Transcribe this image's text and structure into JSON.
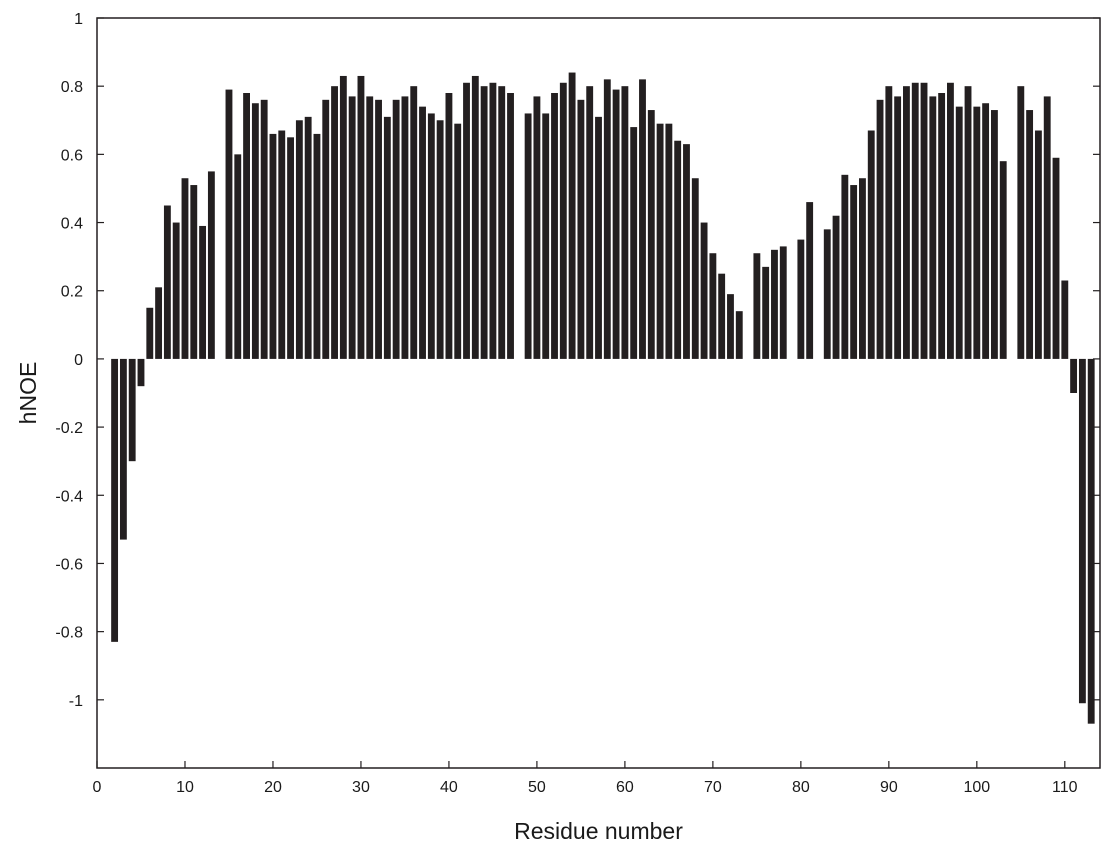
{
  "chart_data": {
    "type": "bar",
    "title": "",
    "xlabel": "Residue number",
    "ylabel": "hNOE",
    "xlim": [
      0,
      114
    ],
    "ylim": [
      -1.2,
      1
    ],
    "xticks": [
      0,
      10,
      20,
      30,
      40,
      50,
      60,
      70,
      80,
      90,
      100,
      110
    ],
    "yticks": [
      -1,
      -0.8,
      -0.6,
      -0.4,
      -0.2,
      0,
      0.2,
      0.4,
      0.6,
      0.8,
      1
    ],
    "ytick_labels": [
      "-1",
      "-0.8",
      "-0.6",
      "-0.4",
      "-0.2",
      "0",
      "0.2",
      "0.4",
      "0.6",
      "0.8",
      "1"
    ],
    "grid": false,
    "bar_color": "#231f20",
    "x": [
      2,
      3,
      4,
      5,
      6,
      7,
      8,
      9,
      10,
      11,
      12,
      13,
      15,
      16,
      17,
      18,
      19,
      20,
      21,
      22,
      23,
      24,
      25,
      26,
      27,
      28,
      29,
      30,
      31,
      32,
      33,
      34,
      35,
      36,
      37,
      38,
      39,
      40,
      41,
      42,
      43,
      44,
      45,
      46,
      47,
      49,
      50,
      51,
      52,
      53,
      54,
      55,
      56,
      57,
      58,
      59,
      60,
      61,
      62,
      63,
      64,
      65,
      66,
      67,
      68,
      69,
      70,
      71,
      72,
      73,
      75,
      76,
      77,
      78,
      80,
      81,
      83,
      84,
      85,
      86,
      87,
      88,
      89,
      90,
      91,
      92,
      93,
      94,
      95,
      96,
      97,
      98,
      99,
      100,
      101,
      102,
      103,
      105,
      106,
      107,
      108,
      109,
      110,
      111,
      112,
      113
    ],
    "values": [
      -0.83,
      -0.53,
      -0.3,
      -0.08,
      0.15,
      0.21,
      0.45,
      0.4,
      0.53,
      0.51,
      0.39,
      0.55,
      0.79,
      0.6,
      0.78,
      0.75,
      0.76,
      0.66,
      0.67,
      0.65,
      0.7,
      0.71,
      0.66,
      0.76,
      0.8,
      0.83,
      0.77,
      0.83,
      0.77,
      0.76,
      0.71,
      0.76,
      0.77,
      0.8,
      0.74,
      0.72,
      0.7,
      0.78,
      0.69,
      0.81,
      0.83,
      0.8,
      0.81,
      0.8,
      0.78,
      0.72,
      0.77,
      0.72,
      0.78,
      0.81,
      0.84,
      0.76,
      0.8,
      0.71,
      0.82,
      0.79,
      0.8,
      0.68,
      0.82,
      0.73,
      0.69,
      0.69,
      0.64,
      0.63,
      0.53,
      0.4,
      0.31,
      0.25,
      0.19,
      0.14,
      0.31,
      0.27,
      0.32,
      0.33,
      0.35,
      0.46,
      0.38,
      0.42,
      0.54,
      0.51,
      0.53,
      0.67,
      0.76,
      0.8,
      0.77,
      0.8,
      0.81,
      0.81,
      0.77,
      0.78,
      0.81,
      0.74,
      0.8,
      0.74,
      0.75,
      0.73,
      0.58,
      0.8,
      0.73,
      0.67,
      0.77,
      0.59,
      0.23,
      -0.1,
      -1.01,
      -1.07
    ]
  }
}
